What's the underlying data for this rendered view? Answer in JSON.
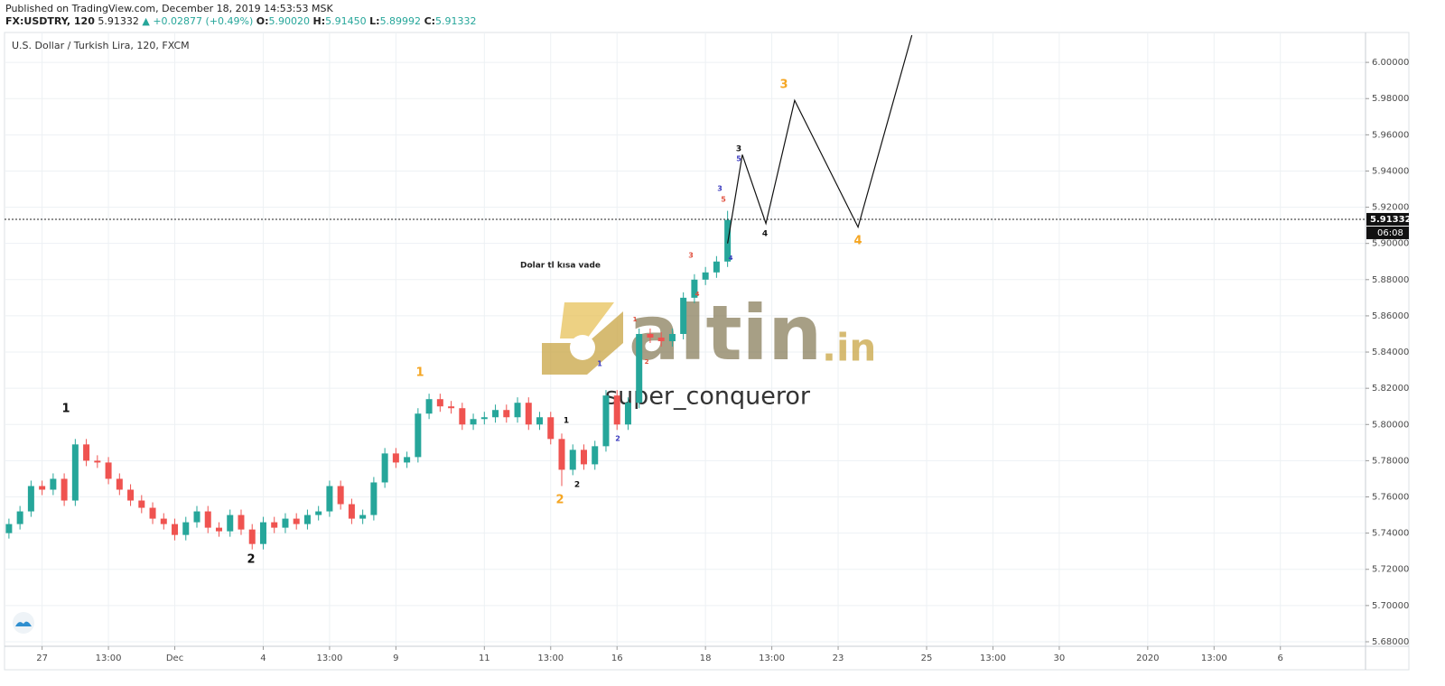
{
  "header": {
    "published": "Published on TradingView.com, December 18, 2019 14:53:53 MSK",
    "symbol": "FX:USDTRY, 120",
    "last": "5.91332",
    "change": "▲ +0.02877 (+0.49%)",
    "o_label": "O:",
    "o": "5.90020",
    "h_label": "H:",
    "h": "5.91450",
    "l_label": "L:",
    "l": "5.89992",
    "c_label": "C:",
    "c": "5.91332"
  },
  "chart_data": {
    "type": "candlestick",
    "title": "U.S. Dollar / Turkish Lira, 120, FXCM",
    "up_color": "#26a69a",
    "down_color": "#ef5350",
    "grid": true,
    "x": [
      0,
      3,
      6,
      9,
      12,
      15,
      18,
      21,
      24,
      27,
      30,
      33,
      36,
      39,
      42,
      45,
      48,
      51,
      54,
      57,
      60,
      63,
      66,
      69,
      72,
      75,
      78,
      81,
      84,
      87,
      90,
      93,
      96,
      99,
      102,
      105,
      108,
      111,
      114,
      117,
      120,
      123,
      126,
      129,
      132,
      135,
      138,
      141,
      144,
      147,
      150,
      153,
      156,
      159,
      162,
      165,
      168,
      171,
      174,
      177,
      180,
      183,
      186,
      189,
      192,
      195
    ],
    "open": [
      5.74,
      5.745,
      5.752,
      5.766,
      5.764,
      5.77,
      5.758,
      5.789,
      5.78,
      5.779,
      5.77,
      5.764,
      5.758,
      5.754,
      5.748,
      5.745,
      5.739,
      5.746,
      5.752,
      5.743,
      5.741,
      5.75,
      5.742,
      5.734,
      5.746,
      5.743,
      5.748,
      5.745,
      5.75,
      5.752,
      5.766,
      5.756,
      5.748,
      5.75,
      5.768,
      5.784,
      5.779,
      5.782,
      5.806,
      5.814,
      5.81,
      5.809,
      5.8,
      5.803,
      5.804,
      5.808,
      5.804,
      5.812,
      5.8,
      5.804,
      5.792,
      5.775,
      5.786,
      5.778,
      5.788,
      5.816,
      5.8,
      5.812,
      5.85,
      5.848,
      5.846,
      5.85,
      5.87,
      5.88,
      5.884,
      5.89
    ],
    "high": [
      5.748,
      5.755,
      5.769,
      5.769,
      5.773,
      5.773,
      5.792,
      5.792,
      5.783,
      5.782,
      5.773,
      5.767,
      5.761,
      5.757,
      5.751,
      5.748,
      5.749,
      5.755,
      5.755,
      5.746,
      5.753,
      5.753,
      5.745,
      5.749,
      5.749,
      5.751,
      5.751,
      5.753,
      5.755,
      5.769,
      5.769,
      5.759,
      5.753,
      5.771,
      5.787,
      5.787,
      5.785,
      5.809,
      5.817,
      5.817,
      5.813,
      5.812,
      5.806,
      5.807,
      5.811,
      5.811,
      5.815,
      5.815,
      5.807,
      5.807,
      5.795,
      5.789,
      5.789,
      5.791,
      5.819,
      5.819,
      5.815,
      5.853,
      5.853,
      5.851,
      5.853,
      5.873,
      5.883,
      5.887,
      5.893,
      5.918
    ],
    "low": [
      5.737,
      5.742,
      5.749,
      5.761,
      5.761,
      5.755,
      5.755,
      5.777,
      5.776,
      5.767,
      5.761,
      5.755,
      5.751,
      5.745,
      5.742,
      5.736,
      5.736,
      5.743,
      5.74,
      5.738,
      5.738,
      5.739,
      5.731,
      5.731,
      5.74,
      5.74,
      5.742,
      5.742,
      5.747,
      5.749,
      5.753,
      5.745,
      5.745,
      5.747,
      5.765,
      5.776,
      5.776,
      5.779,
      5.803,
      5.807,
      5.806,
      5.797,
      5.797,
      5.8,
      5.801,
      5.801,
      5.801,
      5.797,
      5.797,
      5.789,
      5.766,
      5.772,
      5.775,
      5.775,
      5.785,
      5.797,
      5.797,
      5.809,
      5.845,
      5.843,
      5.843,
      5.847,
      5.867,
      5.877,
      5.881,
      5.887
    ],
    "close": [
      5.745,
      5.752,
      5.766,
      5.764,
      5.77,
      5.758,
      5.789,
      5.78,
      5.779,
      5.77,
      5.764,
      5.758,
      5.754,
      5.748,
      5.745,
      5.739,
      5.746,
      5.752,
      5.743,
      5.741,
      5.75,
      5.742,
      5.734,
      5.746,
      5.743,
      5.748,
      5.745,
      5.75,
      5.752,
      5.766,
      5.756,
      5.748,
      5.75,
      5.768,
      5.784,
      5.779,
      5.782,
      5.806,
      5.814,
      5.81,
      5.809,
      5.8,
      5.803,
      5.804,
      5.808,
      5.804,
      5.812,
      5.8,
      5.804,
      5.792,
      5.775,
      5.786,
      5.778,
      5.788,
      5.816,
      5.8,
      5.812,
      5.85,
      5.848,
      5.846,
      5.85,
      5.87,
      5.88,
      5.884,
      5.89,
      5.913
    ],
    "projection": {
      "color": "#111111",
      "x": [
        195,
        199,
        205.4,
        213.2,
        230.4,
        245
      ],
      "values": [
        5.9,
        5.949,
        5.911,
        5.979,
        5.909,
        6.015
      ]
    },
    "last_price": 5.91332,
    "countdown": "06:08",
    "xlim": [
      -1.2,
      368.1
    ],
    "ylim": [
      5.6775,
      6.0165
    ],
    "xticks": [
      {
        "value": 9,
        "label": "27"
      },
      {
        "value": 27,
        "label": "13:00"
      },
      {
        "value": 45,
        "label": "Dec"
      },
      {
        "value": 69,
        "label": "4"
      },
      {
        "value": 87,
        "label": "13:00"
      },
      {
        "value": 105,
        "label": "9"
      },
      {
        "value": 129,
        "label": "11"
      },
      {
        "value": 147,
        "label": "13:00"
      },
      {
        "value": 165,
        "label": "16"
      },
      {
        "value": 189,
        "label": "18"
      },
      {
        "value": 207,
        "label": "13:00"
      },
      {
        "value": 225,
        "label": "23"
      },
      {
        "value": 249,
        "label": "25"
      },
      {
        "value": 267,
        "label": "13:00"
      },
      {
        "value": 285,
        "label": "30"
      },
      {
        "value": 309,
        "label": "2020"
      },
      {
        "value": 327,
        "label": "13:00"
      },
      {
        "value": 345,
        "label": "6"
      }
    ],
    "yticks": [
      {
        "value": 5.68,
        "label": "5.68000"
      },
      {
        "value": 5.7,
        "label": "5.70000"
      },
      {
        "value": 5.72,
        "label": "5.72000"
      },
      {
        "value": 5.74,
        "label": "5.74000"
      },
      {
        "value": 5.76,
        "label": "5.76000"
      },
      {
        "value": 5.78,
        "label": "5.78000"
      },
      {
        "value": 5.8,
        "label": "5.80000"
      },
      {
        "value": 5.82,
        "label": "5.82000"
      },
      {
        "value": 5.84,
        "label": "5.84000"
      },
      {
        "value": 5.86,
        "label": "5.86000"
      },
      {
        "value": 5.88,
        "label": "5.88000"
      },
      {
        "value": 5.9,
        "label": "5.90000"
      },
      {
        "value": 5.92,
        "label": "5.92000"
      },
      {
        "value": 5.94,
        "label": "5.94000"
      },
      {
        "value": 5.96,
        "label": "5.96000"
      },
      {
        "value": 5.98,
        "label": "5.98000"
      },
      {
        "value": 6.0,
        "label": "6.00000"
      }
    ],
    "annotations": [
      "1",
      "2",
      "1",
      "2",
      "3",
      "4",
      "1",
      "2",
      "4",
      "3",
      "1",
      "2",
      "3",
      "5",
      "4",
      "1",
      "2",
      "3",
      "4",
      "5"
    ],
    "note": "Dolar tl kısa vade",
    "watermark": {
      "brand": "altin",
      "suffix": ".in",
      "author": "super_conqueror"
    }
  }
}
